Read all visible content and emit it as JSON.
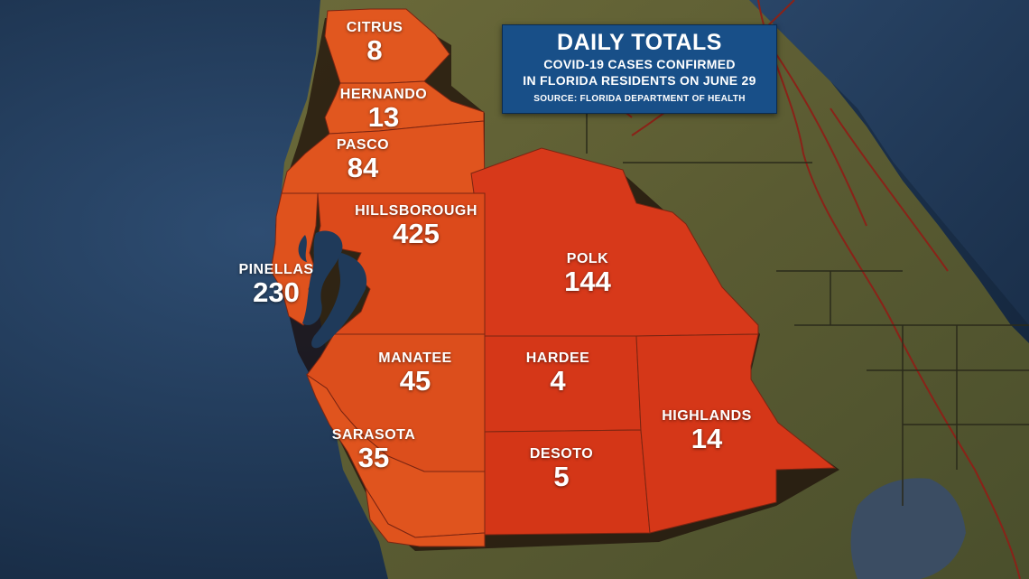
{
  "colors": {
    "ocean": "#1f3a5a",
    "land": "#5a5d33",
    "county_fill": "#d83a18",
    "coastal_fill": "#e0541e",
    "title_bg": "#184f88",
    "roads": "#8a2218"
  },
  "title_box": {
    "title": "DAILY TOTALS",
    "subtitle_line1": "COVID-19 CASES CONFIRMED",
    "subtitle_line2": "IN FLORIDA RESIDENTS ON JUNE 29",
    "source": "SOURCE: FLORIDA DEPARTMENT OF HEALTH"
  },
  "counties": [
    {
      "id": "citrus",
      "name": "CITRUS",
      "value": "8"
    },
    {
      "id": "hernando",
      "name": "HERNANDO",
      "value": "13"
    },
    {
      "id": "pasco",
      "name": "PASCO",
      "value": "84"
    },
    {
      "id": "hillsborough",
      "name": "HILLSBOROUGH",
      "value": "425"
    },
    {
      "id": "pinellas",
      "name": "PINELLAS",
      "value": "230"
    },
    {
      "id": "polk",
      "name": "POLK",
      "value": "144"
    },
    {
      "id": "manatee",
      "name": "MANATEE",
      "value": "45"
    },
    {
      "id": "hardee",
      "name": "HARDEE",
      "value": "4"
    },
    {
      "id": "sarasota",
      "name": "SARASOTA",
      "value": "35"
    },
    {
      "id": "desoto",
      "name": "DESOTO",
      "value": "5"
    },
    {
      "id": "highlands",
      "name": "HIGHLANDS",
      "value": "14"
    }
  ]
}
